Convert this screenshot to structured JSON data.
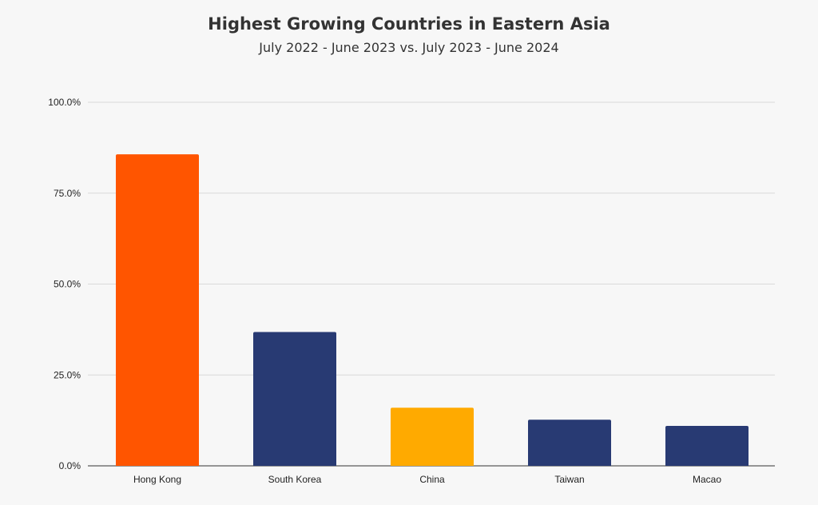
{
  "chart_data": {
    "type": "bar",
    "title": "Highest Growing Countries in Eastern Asia",
    "subtitle": "July 2022 - June 2023 vs. July 2023 - June 2024",
    "xlabel": "",
    "ylabel": "",
    "categories": [
      "Hong Kong",
      "South Korea",
      "China",
      "Taiwan",
      "Macao"
    ],
    "values": [
      85.7,
      36.8,
      16.0,
      12.7,
      11.0
    ],
    "colors": [
      "#ff5500",
      "#283a73",
      "#ffaa00",
      "#283a73",
      "#283a73"
    ],
    "ylim": [
      0,
      100
    ],
    "yticks": [
      0,
      25,
      50,
      75,
      100
    ],
    "ytick_labels": [
      "0.0%",
      "25.0%",
      "50.0%",
      "75.0%",
      "100.0%"
    ],
    "grid": true,
    "legend": "none"
  }
}
